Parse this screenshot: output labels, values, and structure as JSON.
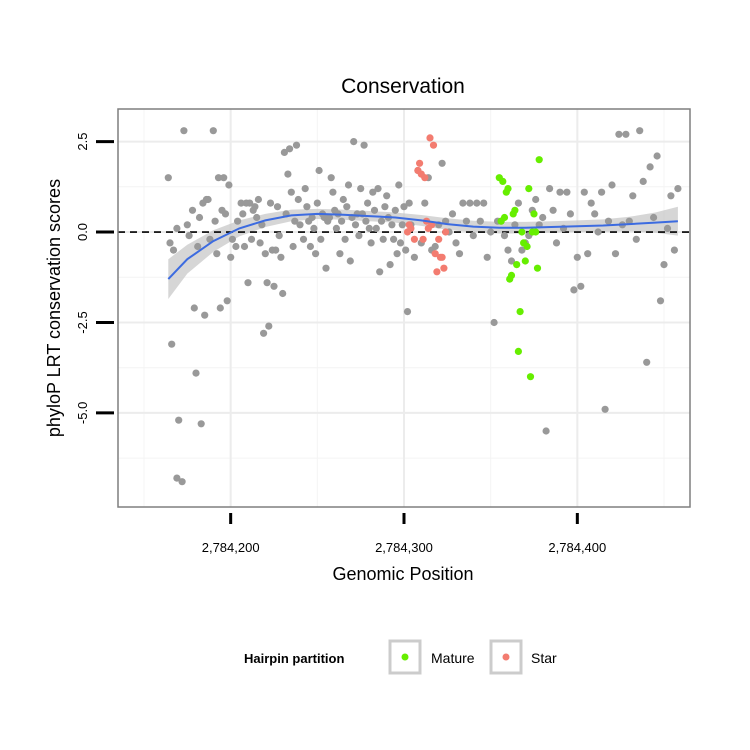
{
  "chart_data": {
    "type": "scatter",
    "title": "Conservation",
    "xlabel": "Genomic Position",
    "ylabel": "phyloP LRT conservation scores",
    "xlim": [
      2784135,
      2784465
    ],
    "ylim": [
      -7.6,
      3.4
    ],
    "x_ticks": [
      {
        "value": 2784200,
        "label": "2,784,200"
      },
      {
        "value": 2784300,
        "label": "2,784,300"
      },
      {
        "value": 2784400,
        "label": "2,784,400"
      }
    ],
    "y_ticks": [
      {
        "value": 2.5,
        "label": "2.5"
      },
      {
        "value": 0,
        "label": "0.0"
      },
      {
        "value": -2.5,
        "label": "-2.5"
      },
      {
        "value": -5,
        "label": "-5.0"
      }
    ],
    "grid": true,
    "reference_line": {
      "y": 0,
      "style": "dashed",
      "color": "#000000"
    },
    "legend": {
      "title": "Hairpin partition",
      "position": "bottom",
      "entries": [
        {
          "label": "Mature",
          "color": "#66ee00"
        },
        {
          "label": "Star",
          "color": "#f37c70"
        }
      ]
    },
    "colors": {
      "other": "#999999",
      "Mature": "#66ee00",
      "Star": "#f37c70",
      "smooth": "#3c6be0",
      "band": "#c8c8c8"
    },
    "series": [
      {
        "group": "other",
        "points": [
          [
            2784164,
            1.5
          ],
          [
            2784165,
            -0.3
          ],
          [
            2784166,
            -3.1
          ],
          [
            2784167,
            -0.5
          ],
          [
            2784169,
            0.1
          ],
          [
            2784170,
            -5.2
          ],
          [
            2784169,
            -6.8
          ],
          [
            2784172,
            -6.9
          ],
          [
            2784173,
            2.8
          ],
          [
            2784175,
            0.2
          ],
          [
            2784176,
            -0.1
          ],
          [
            2784178,
            0.6
          ],
          [
            2784179,
            -2.1
          ],
          [
            2784180,
            -3.9
          ],
          [
            2784181,
            -0.4
          ],
          [
            2784182,
            0.4
          ],
          [
            2784183,
            -5.3
          ],
          [
            2784184,
            0.8
          ],
          [
            2784185,
            -2.3
          ],
          [
            2784186,
            0.9
          ],
          [
            2784187,
            0.9
          ],
          [
            2784188,
            -0.2
          ],
          [
            2784190,
            2.8
          ],
          [
            2784191,
            0.3
          ],
          [
            2784192,
            -0.6
          ],
          [
            2784193,
            1.5
          ],
          [
            2784194,
            -2.1
          ],
          [
            2784195,
            0.6
          ],
          [
            2784196,
            1.5
          ],
          [
            2784197,
            0.5
          ],
          [
            2784198,
            -1.9
          ],
          [
            2784199,
            1.3
          ],
          [
            2784200,
            -0.7
          ],
          [
            2784201,
            -0.2
          ],
          [
            2784203,
            -0.4
          ],
          [
            2784204,
            0.3
          ],
          [
            2784206,
            0.8
          ],
          [
            2784207,
            0.5
          ],
          [
            2784208,
            -0.4
          ],
          [
            2784209,
            0.8
          ],
          [
            2784210,
            -1.4
          ],
          [
            2784211,
            0.8
          ],
          [
            2784212,
            -0.2
          ],
          [
            2784213,
            0.6
          ],
          [
            2784214,
            0.7
          ],
          [
            2784215,
            0.4
          ],
          [
            2784216,
            0.9
          ],
          [
            2784217,
            -0.3
          ],
          [
            2784218,
            0.2
          ],
          [
            2784219,
            -2.8
          ],
          [
            2784220,
            -0.6
          ],
          [
            2784221,
            -1.4
          ],
          [
            2784222,
            -2.6
          ],
          [
            2784223,
            0.8
          ],
          [
            2784224,
            -0.5
          ],
          [
            2784225,
            -1.5
          ],
          [
            2784226,
            -0.5
          ],
          [
            2784227,
            0.7
          ],
          [
            2784228,
            -0.1
          ],
          [
            2784229,
            -0.7
          ],
          [
            2784230,
            -1.7
          ],
          [
            2784231,
            2.2
          ],
          [
            2784232,
            0.5
          ],
          [
            2784233,
            1.6
          ],
          [
            2784234,
            2.3
          ],
          [
            2784235,
            1.1
          ],
          [
            2784236,
            -0.4
          ],
          [
            2784237,
            0.3
          ],
          [
            2784238,
            2.4
          ],
          [
            2784239,
            0.9
          ],
          [
            2784240,
            0.2
          ],
          [
            2784242,
            -0.2
          ],
          [
            2784243,
            1.2
          ],
          [
            2784244,
            0.7
          ],
          [
            2784245,
            0.3
          ],
          [
            2784246,
            -0.4
          ],
          [
            2784247,
            0.4
          ],
          [
            2784248,
            0.1
          ],
          [
            2784249,
            -0.6
          ],
          [
            2784250,
            0.8
          ],
          [
            2784251,
            1.7
          ],
          [
            2784252,
            -0.2
          ],
          [
            2784253,
            0.5
          ],
          [
            2784254,
            0.4
          ],
          [
            2784255,
            -1.0
          ],
          [
            2784256,
            0.3
          ],
          [
            2784257,
            0.4
          ],
          [
            2784258,
            1.5
          ],
          [
            2784259,
            1.1
          ],
          [
            2784260,
            0.6
          ],
          [
            2784261,
            0.1
          ],
          [
            2784262,
            0.5
          ],
          [
            2784263,
            -0.6
          ],
          [
            2784264,
            0.3
          ],
          [
            2784265,
            0.9
          ],
          [
            2784266,
            -0.2
          ],
          [
            2784267,
            0.7
          ],
          [
            2784268,
            1.3
          ],
          [
            2784269,
            -0.8
          ],
          [
            2784270,
            0.4
          ],
          [
            2784271,
            2.5
          ],
          [
            2784272,
            0.2
          ],
          [
            2784273,
            0.5
          ],
          [
            2784274,
            -0.1
          ],
          [
            2784275,
            1.2
          ],
          [
            2784276,
            0.5
          ],
          [
            2784277,
            2.4
          ],
          [
            2784278,
            0.3
          ],
          [
            2784279,
            0.8
          ],
          [
            2784280,
            0.1
          ],
          [
            2784281,
            -0.3
          ],
          [
            2784282,
            1.1
          ],
          [
            2784283,
            0.6
          ],
          [
            2784284,
            0.1
          ],
          [
            2784285,
            1.2
          ],
          [
            2784286,
            -1.1
          ],
          [
            2784287,
            0.3
          ],
          [
            2784288,
            -0.2
          ],
          [
            2784289,
            0.7
          ],
          [
            2784290,
            1.0
          ],
          [
            2784291,
            0.4
          ],
          [
            2784292,
            -0.9
          ],
          [
            2784293,
            0.2
          ],
          [
            2784294,
            -0.2
          ],
          [
            2784295,
            0.6
          ],
          [
            2784296,
            -0.6
          ],
          [
            2784297,
            1.3
          ],
          [
            2784298,
            -0.3
          ],
          [
            2784299,
            0.2
          ],
          [
            2784300,
            0.7
          ],
          [
            2784301,
            -0.5
          ],
          [
            2784302,
            -2.2
          ],
          [
            2784303,
            0.8
          ],
          [
            2784304,
            0.2
          ],
          [
            2784306,
            -0.7
          ],
          [
            2784308,
            1.7
          ],
          [
            2784310,
            -0.3
          ],
          [
            2784312,
            0.8
          ],
          [
            2784314,
            1.5
          ],
          [
            2784316,
            -0.5
          ],
          [
            2784318,
            -0.4
          ],
          [
            2784320,
            0.2
          ],
          [
            2784322,
            1.9
          ],
          [
            2784324,
            0.3
          ],
          [
            2784326,
            0.0
          ],
          [
            2784328,
            0.5
          ],
          [
            2784330,
            -0.3
          ],
          [
            2784332,
            -0.6
          ],
          [
            2784334,
            0.8
          ],
          [
            2784336,
            0.3
          ],
          [
            2784338,
            0.8
          ],
          [
            2784340,
            -0.1
          ],
          [
            2784342,
            0.8
          ],
          [
            2784344,
            0.3
          ],
          [
            2784346,
            0.8
          ],
          [
            2784348,
            -0.7
          ],
          [
            2784350,
            0.0
          ],
          [
            2784352,
            -2.5
          ],
          [
            2784354,
            0.3
          ],
          [
            2784356,
            0.3
          ],
          [
            2784358,
            -0.1
          ],
          [
            2784360,
            -0.5
          ],
          [
            2784362,
            -0.8
          ],
          [
            2784364,
            0.2
          ],
          [
            2784366,
            0.8
          ],
          [
            2784368,
            -0.5
          ],
          [
            2784370,
            -0.3
          ],
          [
            2784372,
            -0.1
          ],
          [
            2784374,
            0.6
          ],
          [
            2784376,
            0.9
          ],
          [
            2784378,
            0.2
          ],
          [
            2784380,
            0.4
          ],
          [
            2784382,
            -5.5
          ],
          [
            2784384,
            1.2
          ],
          [
            2784386,
            0.6
          ],
          [
            2784388,
            -0.3
          ],
          [
            2784390,
            1.1
          ],
          [
            2784392,
            0.1
          ],
          [
            2784394,
            1.1
          ],
          [
            2784396,
            0.5
          ],
          [
            2784398,
            -1.6
          ],
          [
            2784400,
            -0.7
          ],
          [
            2784402,
            -1.5
          ],
          [
            2784404,
            1.1
          ],
          [
            2784406,
            -0.6
          ],
          [
            2784408,
            0.8
          ],
          [
            2784410,
            0.5
          ],
          [
            2784412,
            0.0
          ],
          [
            2784414,
            1.1
          ],
          [
            2784416,
            -4.9
          ],
          [
            2784418,
            0.3
          ],
          [
            2784420,
            1.3
          ],
          [
            2784422,
            -0.6
          ],
          [
            2784424,
            2.7
          ],
          [
            2784426,
            0.2
          ],
          [
            2784428,
            2.7
          ],
          [
            2784430,
            0.3
          ],
          [
            2784432,
            1.0
          ],
          [
            2784434,
            -0.2
          ],
          [
            2784436,
            2.8
          ],
          [
            2784438,
            1.4
          ],
          [
            2784440,
            -3.6
          ],
          [
            2784442,
            1.8
          ],
          [
            2784444,
            0.4
          ],
          [
            2784446,
            2.1
          ],
          [
            2784448,
            -1.9
          ],
          [
            2784450,
            -0.9
          ],
          [
            2784452,
            0.1
          ],
          [
            2784454,
            1.0
          ],
          [
            2784456,
            -0.5
          ],
          [
            2784458,
            1.2
          ]
        ]
      },
      {
        "group": "Star",
        "points": [
          [
            2784302,
            0.0
          ],
          [
            2784303,
            0.2
          ],
          [
            2784304,
            0.1
          ],
          [
            2784306,
            -0.2
          ],
          [
            2784308,
            1.7
          ],
          [
            2784309,
            1.9
          ],
          [
            2784310,
            1.6
          ],
          [
            2784311,
            -0.2
          ],
          [
            2784312,
            1.5
          ],
          [
            2784313,
            0.3
          ],
          [
            2784314,
            0.1
          ],
          [
            2784315,
            2.6
          ],
          [
            2784316,
            0.2
          ],
          [
            2784317,
            2.4
          ],
          [
            2784318,
            -0.6
          ],
          [
            2784319,
            -1.1
          ],
          [
            2784320,
            -0.2
          ],
          [
            2784321,
            -0.7
          ],
          [
            2784322,
            -0.7
          ],
          [
            2784323,
            -1.0
          ],
          [
            2784324,
            0.0
          ]
        ]
      },
      {
        "group": "Mature",
        "points": [
          [
            2784355,
            1.5
          ],
          [
            2784356,
            0.3
          ],
          [
            2784357,
            1.4
          ],
          [
            2784358,
            0.4
          ],
          [
            2784359,
            1.1
          ],
          [
            2784360,
            1.2
          ],
          [
            2784361,
            -1.3
          ],
          [
            2784362,
            -1.2
          ],
          [
            2784363,
            0.5
          ],
          [
            2784364,
            0.6
          ],
          [
            2784365,
            -0.9
          ],
          [
            2784366,
            -3.3
          ],
          [
            2784367,
            -2.2
          ],
          [
            2784368,
            0.0
          ],
          [
            2784369,
            -0.3
          ],
          [
            2784370,
            -0.8
          ],
          [
            2784371,
            -0.4
          ],
          [
            2784372,
            1.2
          ],
          [
            2784373,
            -4.0
          ],
          [
            2784374,
            0.0
          ],
          [
            2784375,
            0.5
          ],
          [
            2784376,
            0.0
          ],
          [
            2784377,
            -1.0
          ],
          [
            2784378,
            2.0
          ]
        ]
      }
    ],
    "smooth": {
      "method": "loess",
      "x": [
        2784164,
        2784175,
        2784190,
        2784205,
        2784220,
        2784235,
        2784250,
        2784265,
        2784280,
        2784295,
        2784310,
        2784325,
        2784340,
        2784355,
        2784370,
        2784385,
        2784400,
        2784415,
        2784430,
        2784445,
        2784458
      ],
      "y": [
        -1.3,
        -0.75,
        -0.25,
        0.1,
        0.32,
        0.46,
        0.5,
        0.48,
        0.44,
        0.4,
        0.32,
        0.22,
        0.15,
        0.12,
        0.12,
        0.14,
        0.16,
        0.18,
        0.22,
        0.26,
        0.3
      ],
      "ci_half": [
        0.55,
        0.4,
        0.3,
        0.22,
        0.18,
        0.16,
        0.14,
        0.14,
        0.14,
        0.14,
        0.15,
        0.16,
        0.16,
        0.16,
        0.16,
        0.16,
        0.16,
        0.17,
        0.2,
        0.28,
        0.4
      ]
    }
  }
}
